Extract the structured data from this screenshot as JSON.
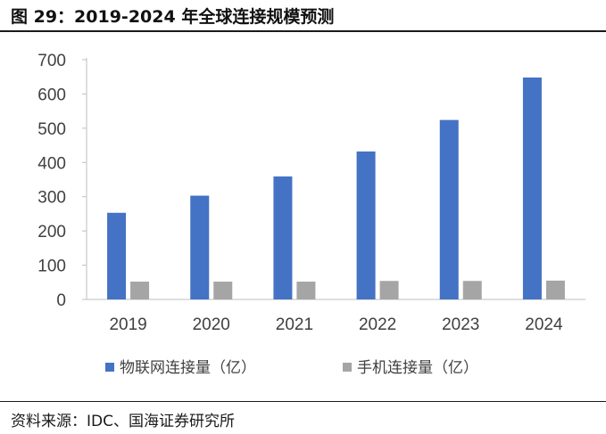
{
  "header": {
    "title": "图 29：2019-2024 年全球连接规模预测"
  },
  "footer": {
    "source": "资料来源：IDC、国海证券研究所"
  },
  "chart_data": {
    "type": "bar",
    "title": "",
    "xlabel": "",
    "ylabel": "",
    "categories": [
      "2019",
      "2020",
      "2021",
      "2022",
      "2023",
      "2024"
    ],
    "yticks": [
      "0",
      "100",
      "200",
      "300",
      "400",
      "500",
      "600",
      "700"
    ],
    "ylim": [
      0,
      700
    ],
    "grid": false,
    "legend_position": "bottom",
    "series": [
      {
        "name": "物联网连接量（亿）",
        "color": "#4472C4",
        "values": [
          253,
          303,
          359,
          432,
          524,
          648
        ]
      },
      {
        "name": "手机连接量（亿）",
        "color": "#A5A5A5",
        "values": [
          52,
          52,
          52,
          54,
          54,
          55
        ]
      }
    ]
  }
}
